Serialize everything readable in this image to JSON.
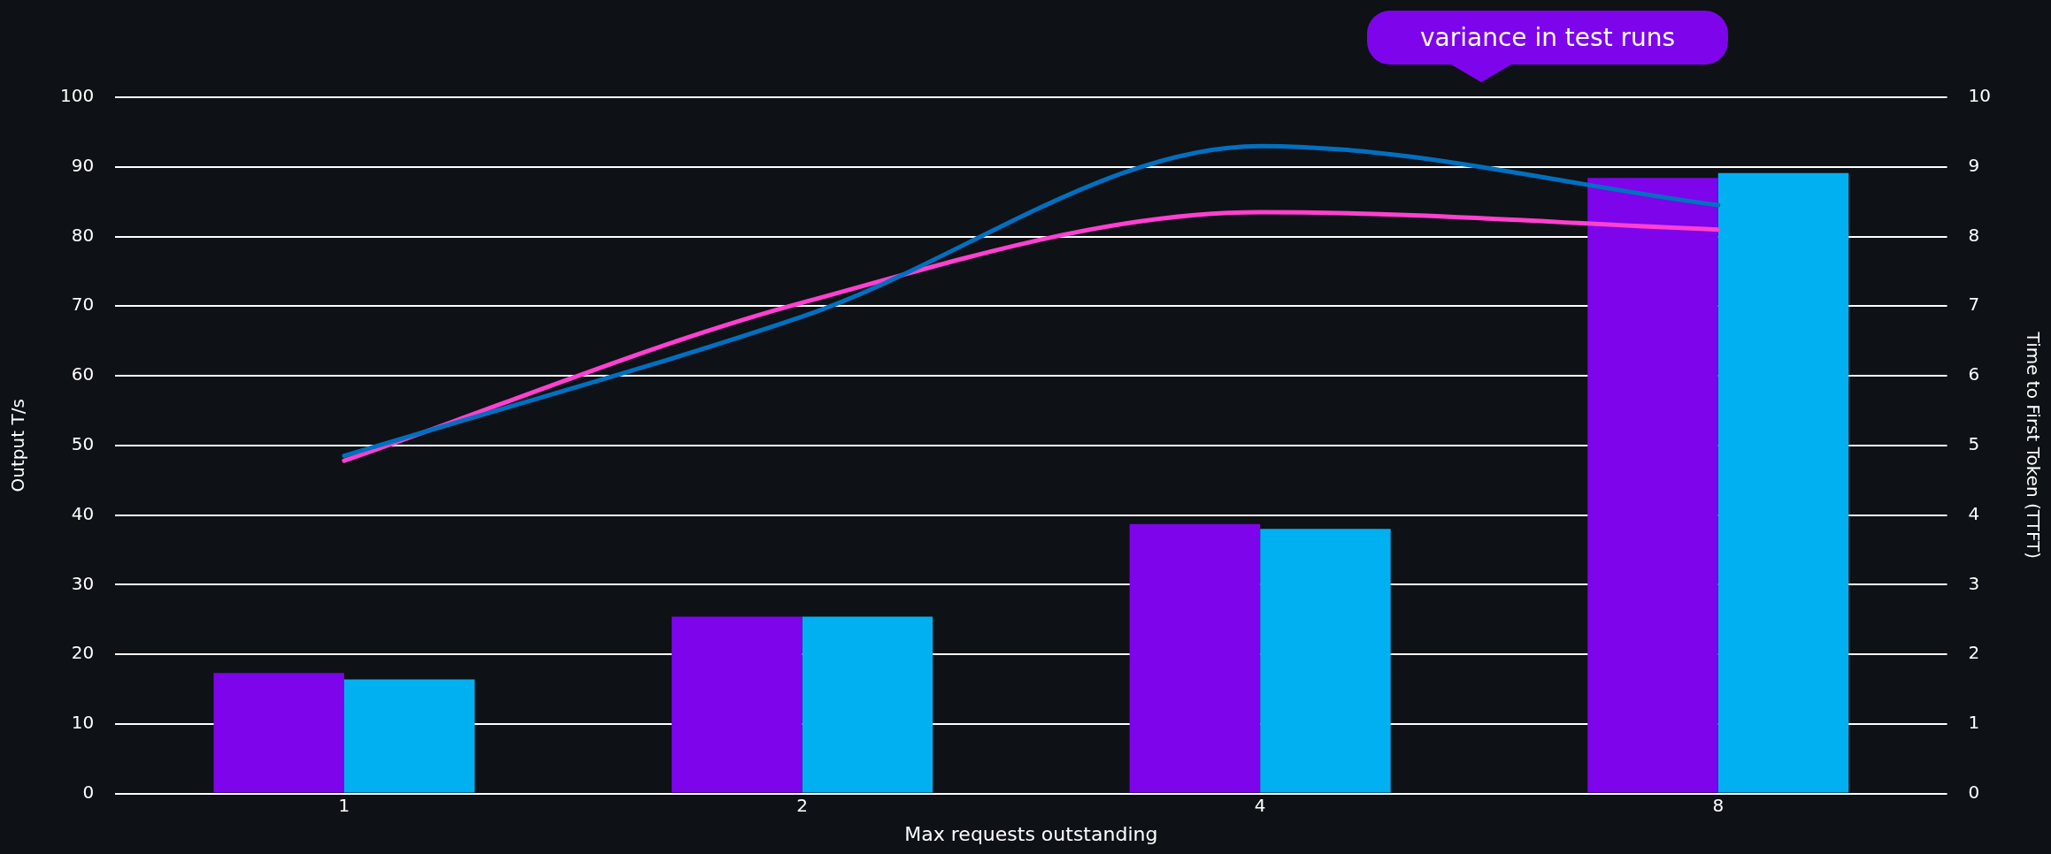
{
  "chart_data": {
    "type": "bar",
    "xlabel": "Max requests outstanding",
    "ylabel": "Output T/s",
    "y2label": "Time to First Token (TTFT)",
    "categories": [
      "1",
      "2",
      "4",
      "8"
    ],
    "series": [
      {
        "color": "#7d04eb",
        "values": [
          17.3,
          25.4,
          38.7,
          88.4
        ]
      },
      {
        "color": "#00b0f0",
        "values": [
          16.4,
          25.4,
          38.0,
          89.1
        ]
      },
      {
        "type": "line",
        "axis": "y2",
        "color": "#0070c0",
        "values": [
          4.85,
          6.85,
          9.3,
          8.45
        ]
      },
      {
        "type": "line",
        "axis": "y2",
        "color": "#ff40d0",
        "values": [
          4.78,
          7.05,
          8.35,
          8.1
        ]
      }
    ],
    "ylim": [
      0,
      100
    ],
    "yticks": [
      0,
      10,
      20,
      30,
      40,
      50,
      60,
      70,
      80,
      90,
      100
    ],
    "y2lim": [
      0,
      10
    ],
    "y2ticks": [
      0,
      1,
      2,
      3,
      4,
      5,
      6,
      7,
      8,
      9,
      10
    ],
    "grid": "y",
    "legend": false,
    "marker": "none",
    "line_style": "solid",
    "annotations": [
      "variance in test runs"
    ]
  }
}
